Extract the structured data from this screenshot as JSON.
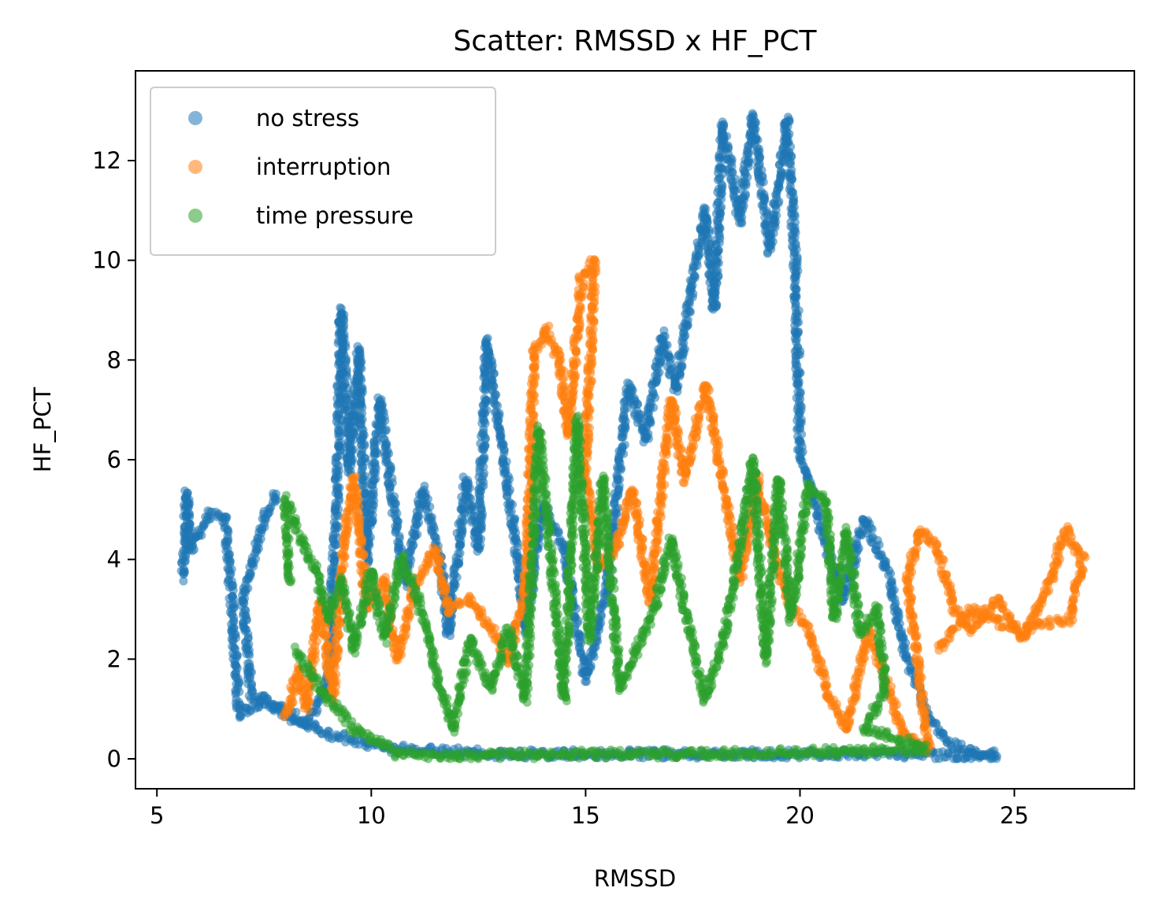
{
  "chart_data": {
    "type": "scatter",
    "title": "Scatter: RMSSD x HF_PCT",
    "xlabel": "RMSSD",
    "ylabel": "HF_PCT",
    "xlim": [
      4.5,
      27.8
    ],
    "ylim": [
      -0.6,
      13.8
    ],
    "x_ticks": [
      5,
      10,
      15,
      20,
      25
    ],
    "y_ticks": [
      0,
      2,
      4,
      6,
      8,
      10,
      12
    ],
    "legend_position": "top-left",
    "grid": false,
    "series": [
      {
        "name": "no stress",
        "color": "#1f77b4",
        "trajectory": [
          [
            5.6,
            3.6
          ],
          [
            5.7,
            5.3
          ],
          [
            5.8,
            4.2
          ],
          [
            6.2,
            4.9
          ],
          [
            6.6,
            4.8
          ],
          [
            6.8,
            2.5
          ],
          [
            6.9,
            0.9
          ],
          [
            7.5,
            1.2
          ],
          [
            7.9,
            1.0
          ],
          [
            8.5,
            0.7
          ],
          [
            9.0,
            1.6
          ],
          [
            9.2,
            5.2
          ],
          [
            9.3,
            9.0
          ],
          [
            9.5,
            5.8
          ],
          [
            9.7,
            8.2
          ],
          [
            9.9,
            4.0
          ],
          [
            10.2,
            7.2
          ],
          [
            10.5,
            5.2
          ],
          [
            10.8,
            3.5
          ],
          [
            11.2,
            5.4
          ],
          [
            11.6,
            4.0
          ],
          [
            11.8,
            2.5
          ],
          [
            12.2,
            5.6
          ],
          [
            12.5,
            4.2
          ],
          [
            12.7,
            8.4
          ],
          [
            13.0,
            6.5
          ],
          [
            13.3,
            4.8
          ],
          [
            13.6,
            2.6
          ],
          [
            14.0,
            5.1
          ],
          [
            14.5,
            4.2
          ],
          [
            15.0,
            1.6
          ],
          [
            15.5,
            3.4
          ],
          [
            16.0,
            7.5
          ],
          [
            16.4,
            6.4
          ],
          [
            16.8,
            8.5
          ],
          [
            17.1,
            7.4
          ],
          [
            17.5,
            9.6
          ],
          [
            17.8,
            11.0
          ],
          [
            18.0,
            9.0
          ],
          [
            18.2,
            12.7
          ],
          [
            18.6,
            10.8
          ],
          [
            18.9,
            12.9
          ],
          [
            19.3,
            10.2
          ],
          [
            19.7,
            12.8
          ],
          [
            19.9,
            9.8
          ],
          [
            20.0,
            6.2
          ],
          [
            20.5,
            4.6
          ],
          [
            21.0,
            3.2
          ],
          [
            21.5,
            4.8
          ],
          [
            22.0,
            3.9
          ],
          [
            22.5,
            2.0
          ],
          [
            23.0,
            0.8
          ],
          [
            23.5,
            0.3
          ],
          [
            24.0,
            0.15
          ],
          [
            24.6,
            0.08
          ],
          [
            24.0,
            0.05
          ],
          [
            22.0,
            0.1
          ],
          [
            19.0,
            0.1
          ],
          [
            16.0,
            0.1
          ],
          [
            13.0,
            0.1
          ],
          [
            10.5,
            0.2
          ],
          [
            9.0,
            0.5
          ],
          [
            8.0,
            0.9
          ],
          [
            7.2,
            1.3
          ],
          [
            7.0,
            3.2
          ],
          [
            7.5,
            4.8
          ],
          [
            7.8,
            5.3
          ]
        ]
      },
      {
        "name": "interruption",
        "color": "#ff7f0e",
        "trajectory": [
          [
            8.0,
            0.8
          ],
          [
            8.3,
            1.8
          ],
          [
            8.5,
            1.0
          ],
          [
            8.8,
            3.2
          ],
          [
            9.1,
            1.2
          ],
          [
            9.4,
            4.6
          ],
          [
            9.6,
            5.6
          ],
          [
            9.9,
            3.0
          ],
          [
            10.3,
            3.6
          ],
          [
            10.6,
            2.0
          ],
          [
            11.0,
            3.4
          ],
          [
            11.5,
            4.2
          ],
          [
            11.8,
            3.0
          ],
          [
            12.3,
            3.2
          ],
          [
            12.8,
            2.6
          ],
          [
            13.2,
            2.0
          ],
          [
            13.6,
            3.4
          ],
          [
            13.8,
            8.2
          ],
          [
            14.1,
            8.6
          ],
          [
            14.4,
            8.0
          ],
          [
            14.6,
            6.5
          ],
          [
            14.9,
            9.6
          ],
          [
            15.2,
            10.0
          ],
          [
            15.0,
            5.8
          ],
          [
            15.3,
            3.8
          ],
          [
            15.7,
            4.2
          ],
          [
            16.1,
            5.4
          ],
          [
            16.5,
            3.2
          ],
          [
            17.0,
            7.2
          ],
          [
            17.3,
            5.6
          ],
          [
            17.8,
            7.5
          ],
          [
            18.2,
            5.6
          ],
          [
            18.6,
            3.6
          ],
          [
            19.0,
            5.6
          ],
          [
            19.4,
            4.1
          ],
          [
            19.8,
            3.0
          ],
          [
            20.2,
            2.6
          ],
          [
            20.7,
            1.2
          ],
          [
            21.1,
            0.6
          ],
          [
            21.6,
            2.6
          ],
          [
            22.0,
            1.6
          ],
          [
            22.4,
            0.5
          ],
          [
            22.8,
            0.3
          ],
          [
            23.0,
            0.2
          ],
          [
            22.5,
            3.6
          ],
          [
            22.8,
            4.6
          ],
          [
            23.2,
            4.2
          ],
          [
            23.6,
            3.0
          ],
          [
            24.0,
            2.6
          ],
          [
            24.6,
            3.2
          ],
          [
            25.2,
            2.4
          ],
          [
            25.8,
            3.5
          ],
          [
            26.2,
            4.6
          ],
          [
            26.6,
            4.0
          ],
          [
            26.3,
            2.8
          ],
          [
            25.0,
            2.6
          ],
          [
            24.0,
            3.0
          ],
          [
            23.2,
            2.2
          ]
        ]
      },
      {
        "name": "time pressure",
        "color": "#2ca02c",
        "trajectory": [
          [
            8.1,
            3.5
          ],
          [
            8.0,
            5.2
          ],
          [
            8.4,
            4.3
          ],
          [
            8.7,
            3.8
          ],
          [
            9.0,
            2.8
          ],
          [
            9.3,
            3.6
          ],
          [
            9.6,
            2.2
          ],
          [
            10.0,
            3.8
          ],
          [
            10.3,
            2.4
          ],
          [
            10.7,
            4.0
          ],
          [
            11.1,
            3.2
          ],
          [
            11.5,
            1.8
          ],
          [
            11.9,
            0.6
          ],
          [
            12.3,
            2.4
          ],
          [
            12.8,
            1.4
          ],
          [
            13.2,
            2.6
          ],
          [
            13.6,
            1.2
          ],
          [
            13.9,
            6.6
          ],
          [
            14.2,
            4.0
          ],
          [
            14.5,
            1.2
          ],
          [
            14.8,
            6.8
          ],
          [
            15.1,
            2.4
          ],
          [
            15.4,
            5.6
          ],
          [
            15.8,
            1.4
          ],
          [
            16.2,
            2.2
          ],
          [
            16.6,
            3.0
          ],
          [
            17.0,
            4.4
          ],
          [
            17.4,
            2.6
          ],
          [
            17.8,
            1.2
          ],
          [
            18.2,
            2.4
          ],
          [
            18.6,
            4.2
          ],
          [
            18.9,
            6.0
          ],
          [
            19.2,
            2.0
          ],
          [
            19.5,
            5.6
          ],
          [
            19.8,
            2.8
          ],
          [
            20.2,
            5.5
          ],
          [
            20.6,
            5.2
          ],
          [
            20.8,
            2.8
          ],
          [
            21.1,
            4.6
          ],
          [
            21.4,
            2.5
          ],
          [
            21.8,
            3.0
          ],
          [
            22.0,
            1.4
          ],
          [
            21.5,
            0.6
          ],
          [
            22.0,
            0.5
          ],
          [
            22.9,
            0.2
          ],
          [
            21.0,
            0.15
          ],
          [
            18.0,
            0.1
          ],
          [
            15.0,
            0.1
          ],
          [
            12.0,
            0.05
          ],
          [
            10.6,
            0.1
          ],
          [
            9.6,
            0.6
          ],
          [
            8.8,
            1.4
          ],
          [
            8.2,
            2.2
          ]
        ]
      }
    ]
  }
}
